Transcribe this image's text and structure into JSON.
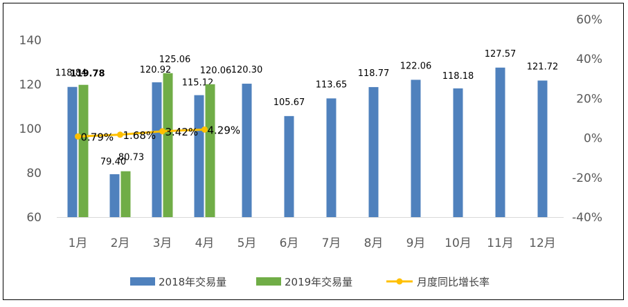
{
  "chart_data": {
    "type": "bar",
    "categories": [
      "1月",
      "2月",
      "3月",
      "4月",
      "5月",
      "6月",
      "7月",
      "8月",
      "9月",
      "10月",
      "11月",
      "12月"
    ],
    "series": [
      {
        "name": "2018年交易量",
        "kind": "bar",
        "axis": "left",
        "color": "#4f81bd",
        "values": [
          118.84,
          79.4,
          120.92,
          115.12,
          120.3,
          105.67,
          113.65,
          118.77,
          122.06,
          118.18,
          127.57,
          121.72
        ],
        "labels": [
          "118.84",
          "79.40",
          "120.92",
          "115.12",
          "120.30",
          "105.67",
          "113.65",
          "118.77",
          "122.06",
          "118.18",
          "127.57",
          "121.72"
        ]
      },
      {
        "name": "2019年交易量",
        "kind": "bar",
        "axis": "left",
        "color": "#70ad47",
        "values": [
          119.78,
          80.73,
          125.06,
          120.06,
          null,
          null,
          null,
          null,
          null,
          null,
          null,
          null
        ],
        "labels": [
          "119.78",
          "80.73",
          "125.06",
          "120.06"
        ]
      },
      {
        "name": "月度同比增长率",
        "kind": "line",
        "axis": "right",
        "color": "#ffc000",
        "values": [
          0.79,
          1.68,
          3.42,
          4.29,
          null,
          null,
          null,
          null,
          null,
          null,
          null,
          null
        ],
        "labels": [
          "0.79%",
          "1.68%",
          "3.42%",
          "4.29%"
        ]
      }
    ],
    "left_axis": {
      "ylim": [
        60,
        140
      ],
      "ticks": [
        "60",
        "80",
        "100",
        "120",
        "140"
      ]
    },
    "right_axis": {
      "ylim": [
        -40,
        60
      ],
      "ticks": [
        "-40%",
        "-20%",
        "0%",
        "20%",
        "40%",
        "60%"
      ]
    },
    "legend": {
      "position": "bottom"
    },
    "grid": false
  }
}
